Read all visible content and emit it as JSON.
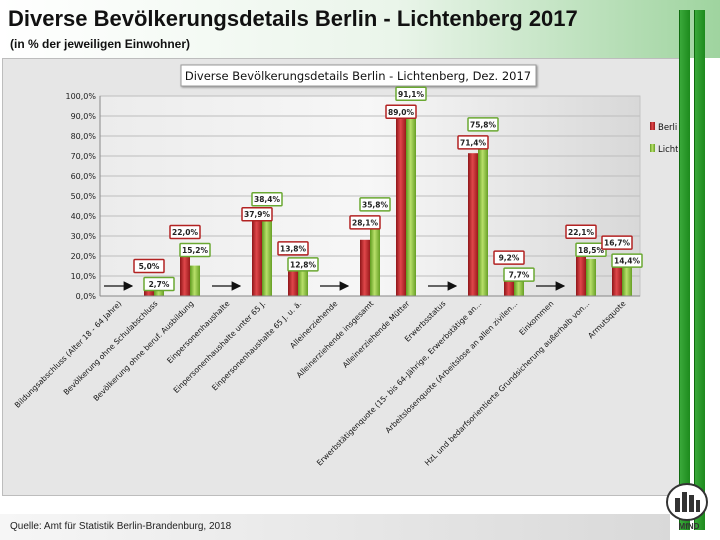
{
  "header": {
    "title": "Diverse Bevölkerungsdetails Berlin - Lichtenberg 2017",
    "subtitle": "(in % der jeweiligen Einwohner)"
  },
  "footer": {
    "source": "Quelle: Amt für Statistik Berlin-Brandenburg, 2018",
    "logo_text": "MfND"
  },
  "colors": {
    "berlin": "#c0282a",
    "lichtenberg": "#8fc43a",
    "label_border_berlin": "#b22222",
    "label_border_lichtenberg": "#6aa832",
    "accent_green": "#2e9a2e"
  },
  "chart_data": {
    "type": "bar",
    "title": "Diverse Bevölkerungsdetails  Berlin - Lichtenberg, Dez. 2017",
    "ylim": [
      0,
      100
    ],
    "yticks": [
      "0,0%",
      "10,0%",
      "20,0%",
      "30,0%",
      "40,0%",
      "50,0%",
      "60,0%",
      "70,0%",
      "80,0%",
      "90,0%",
      "100,0%"
    ],
    "legend_position": "right",
    "categories": [
      "Bildungsabschluss (Alter 18 - 64 Jahre)",
      "Bevölkerung ohne Schulabschluss",
      "Bevölkerung ohne beruf. Ausbildung",
      "Einpersonenhaushalte",
      "Einpersonenhaushalte unter 65 J.",
      "Einpersonenhaushalte 65 J. u. ä.",
      "Alleinerziehende",
      "Alleinerziehende insgesamt",
      "Alleinerziehende Mütter",
      "Erwerbsstatus",
      "Erwerbstätigenquote (15- bis 64-Jährige, Erwerbstätige an...",
      "Arbeitslosenquote (Arbeitslose an allen zivilen...",
      "Einkommen",
      "HzL und bedarfsorientierte Grundsicherung außerhalb von...",
      "Armutsquote"
    ],
    "arrow_categories": [
      0,
      3,
      6,
      9,
      12
    ],
    "series": [
      {
        "name": "Berlin",
        "values": [
          null,
          5.0,
          22.0,
          null,
          37.9,
          13.8,
          null,
          28.1,
          89.0,
          null,
          71.4,
          9.2,
          null,
          22.1,
          16.7
        ],
        "labels": [
          "",
          "5,0%",
          "22,0%",
          "",
          "37,9%",
          "13,8%",
          "",
          "28,1%",
          "89,0%",
          "",
          "71,4%",
          "9,2%",
          "",
          "22,1%",
          "16,7%"
        ]
      },
      {
        "name": "Lichtenberg",
        "values": [
          null,
          2.7,
          15.2,
          null,
          38.4,
          12.8,
          null,
          35.8,
          91.1,
          null,
          75.8,
          7.7,
          null,
          18.5,
          14.4
        ],
        "labels": [
          "",
          "2,7%",
          "15,2%",
          "",
          "38,4%",
          "12,8%",
          "",
          "35,8%",
          "91,1%",
          "",
          "75,8%",
          "7,7%",
          "",
          "18,5%",
          "14,4%"
        ]
      }
    ]
  }
}
